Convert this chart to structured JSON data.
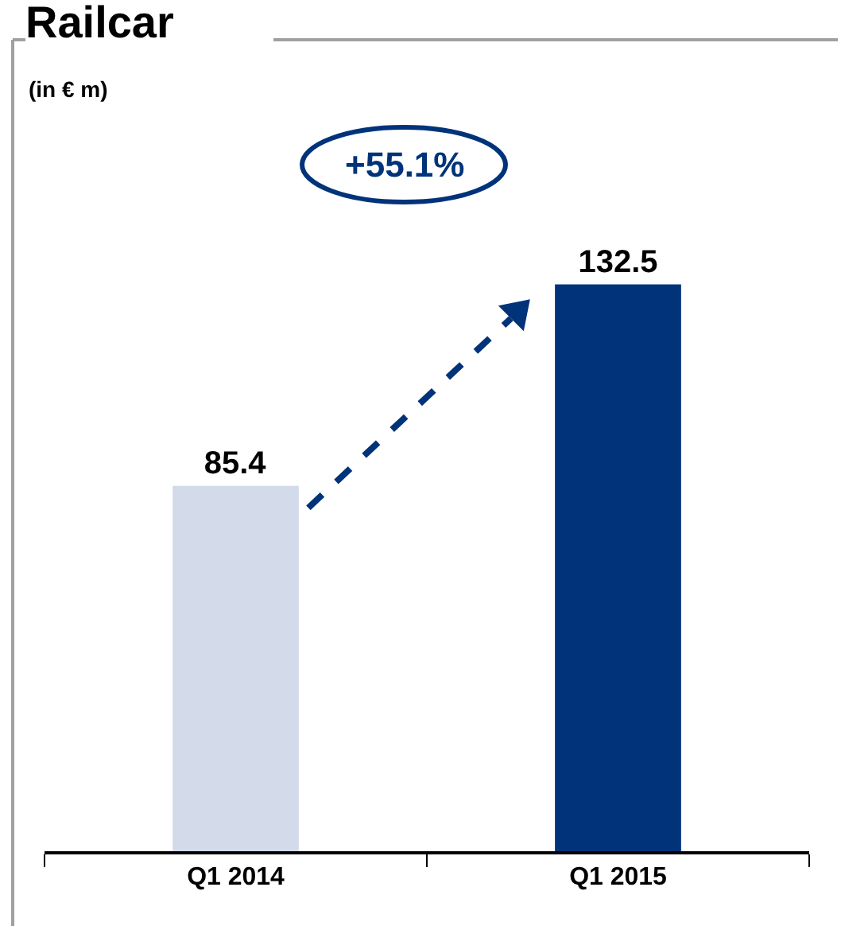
{
  "chart_data": {
    "type": "bar",
    "title": "Railcar",
    "subtitle": "(in € m)",
    "categories": [
      "Q1 2014",
      "Q1 2015"
    ],
    "values": [
      85.4,
      132.5
    ],
    "colors": [
      "#d3dbea",
      "#00337a"
    ],
    "data_labels": true,
    "annotations": [
      "+55.1%"
    ]
  }
}
